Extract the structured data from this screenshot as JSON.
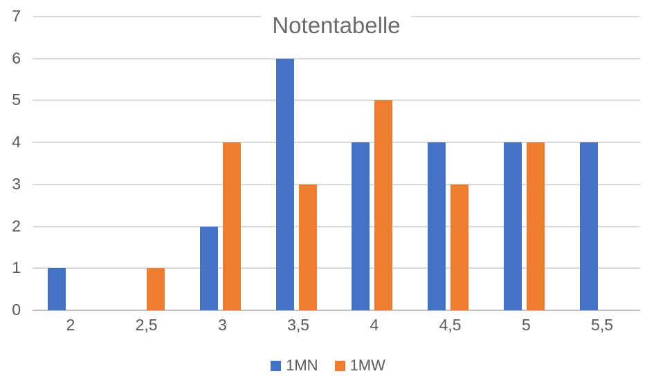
{
  "chart_data": {
    "type": "bar",
    "title": "Notentabelle",
    "categories": [
      "2",
      "2,5",
      "3",
      "3,5",
      "4",
      "4,5",
      "5",
      "5,5"
    ],
    "series": [
      {
        "name": "1MN",
        "color": "#4472C4",
        "values": [
          1,
          0,
          2,
          6,
          4,
          4,
          4,
          4
        ]
      },
      {
        "name": "1MW",
        "color": "#ED7D31",
        "values": [
          0,
          1,
          4,
          3,
          5,
          3,
          4,
          0
        ]
      }
    ],
    "xlabel": "",
    "ylabel": "",
    "ylim": [
      0,
      7
    ],
    "yticks": [
      0,
      1,
      2,
      3,
      4,
      5,
      6,
      7
    ],
    "grid": true,
    "legend_position": "bottom"
  },
  "styles": {
    "title_color": "#6b6b6b",
    "axis_label_color": "#595959",
    "legend_label_color": "#595959",
    "gridline_color": "#D9D9D9",
    "axis_line_color": "#BFBFBF",
    "background": "#FFFFFF"
  }
}
